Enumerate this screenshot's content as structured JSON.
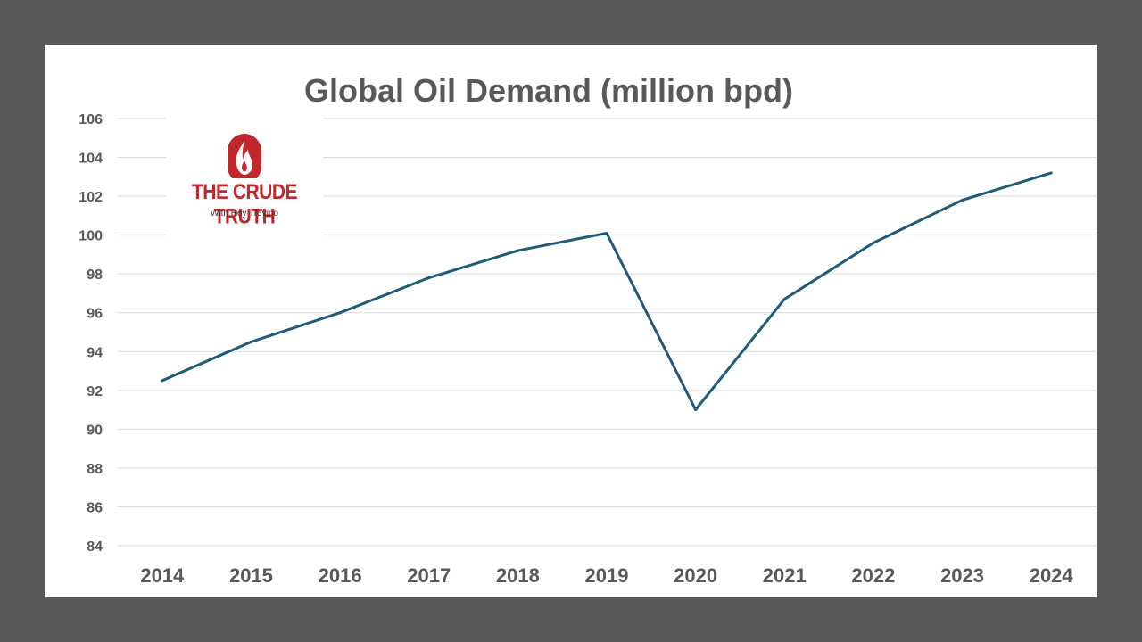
{
  "colors": {
    "background": "#595959",
    "panel": "#ffffff",
    "line": "#1f5c7a",
    "grid": "#d9d9d9",
    "text": "#595959",
    "logo_red": "#c1272d"
  },
  "logo": {
    "title": "THE CRUDE TRUTH",
    "tagline": "With Rey Trevino",
    "icon": "flame-icon"
  },
  "chart_data": {
    "type": "line",
    "title": "Global Oil Demand (million bpd)",
    "xlabel": "",
    "ylabel": "",
    "categories": [
      "2014",
      "2015",
      "2016",
      "2017",
      "2018",
      "2019",
      "2020",
      "2021",
      "2022",
      "2023",
      "2024"
    ],
    "series": [
      {
        "values": [
          92.5,
          94.5,
          96.0,
          97.8,
          99.2,
          100.1,
          91.0,
          96.7,
          99.6,
          101.8,
          103.2
        ]
      }
    ],
    "ylim": [
      84,
      106
    ],
    "yticks": [
      84,
      86,
      88,
      90,
      92,
      94,
      96,
      98,
      100,
      102,
      104,
      106
    ],
    "grid": true,
    "legend": "none"
  }
}
